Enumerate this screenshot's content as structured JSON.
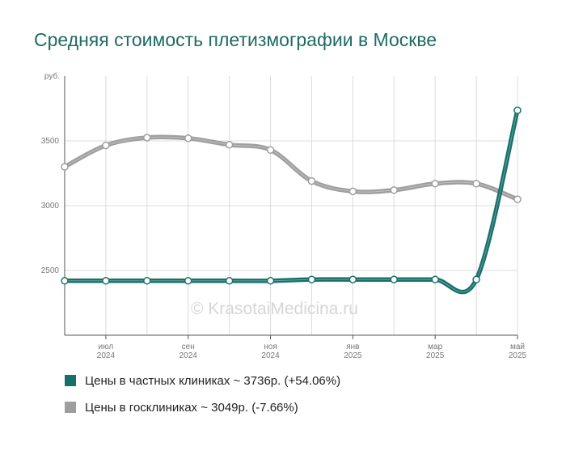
{
  "page": {
    "title": "Средняя стоимость плетизмографии в Москве",
    "watermark": "© KrasotaiMedicina.ru"
  },
  "chart_data": {
    "type": "line",
    "y_unit_label": "руб.",
    "ylim": [
      2000,
      4000
    ],
    "yticks": [
      2500,
      3000,
      3500
    ],
    "grid": true,
    "x_month_ticks": [
      {
        "index": 1,
        "month": "июл",
        "year": "2024"
      },
      {
        "index": 3,
        "month": "сен",
        "year": "2024"
      },
      {
        "index": 5,
        "month": "ноя",
        "year": "2024"
      },
      {
        "index": 7,
        "month": "янв",
        "year": "2025"
      },
      {
        "index": 9,
        "month": "мар",
        "year": "2025"
      },
      {
        "index": 11,
        "month": "май",
        "year": "2025"
      }
    ],
    "x_points": [
      "2024-06",
      "2024-07",
      "2024-08",
      "2024-09",
      "2024-10",
      "2024-11",
      "2024-12",
      "2025-01",
      "2025-02",
      "2025-03",
      "2025-04",
      "2025-05"
    ],
    "series": [
      {
        "name": "Цены в частных клиниках",
        "color": "#16706a",
        "values": [
          2420,
          2420,
          2420,
          2420,
          2420,
          2420,
          2430,
          2430,
          2430,
          2430,
          2430,
          3736
        ]
      },
      {
        "name": "Цены в госклиниках",
        "color": "#9e9e9e",
        "values": [
          3300,
          3465,
          3525,
          3520,
          3470,
          3430,
          3190,
          3110,
          3120,
          3170,
          3170,
          3049
        ]
      }
    ],
    "legend": [
      {
        "label": "Цены в частных клиниках ~ 3736р. (+54.06%)",
        "color": "#16706a"
      },
      {
        "label": "Цены в госклиниках ~ 3049р. (-7.66%)",
        "color": "#9e9e9e"
      }
    ],
    "legend_position": "bottom-left"
  }
}
